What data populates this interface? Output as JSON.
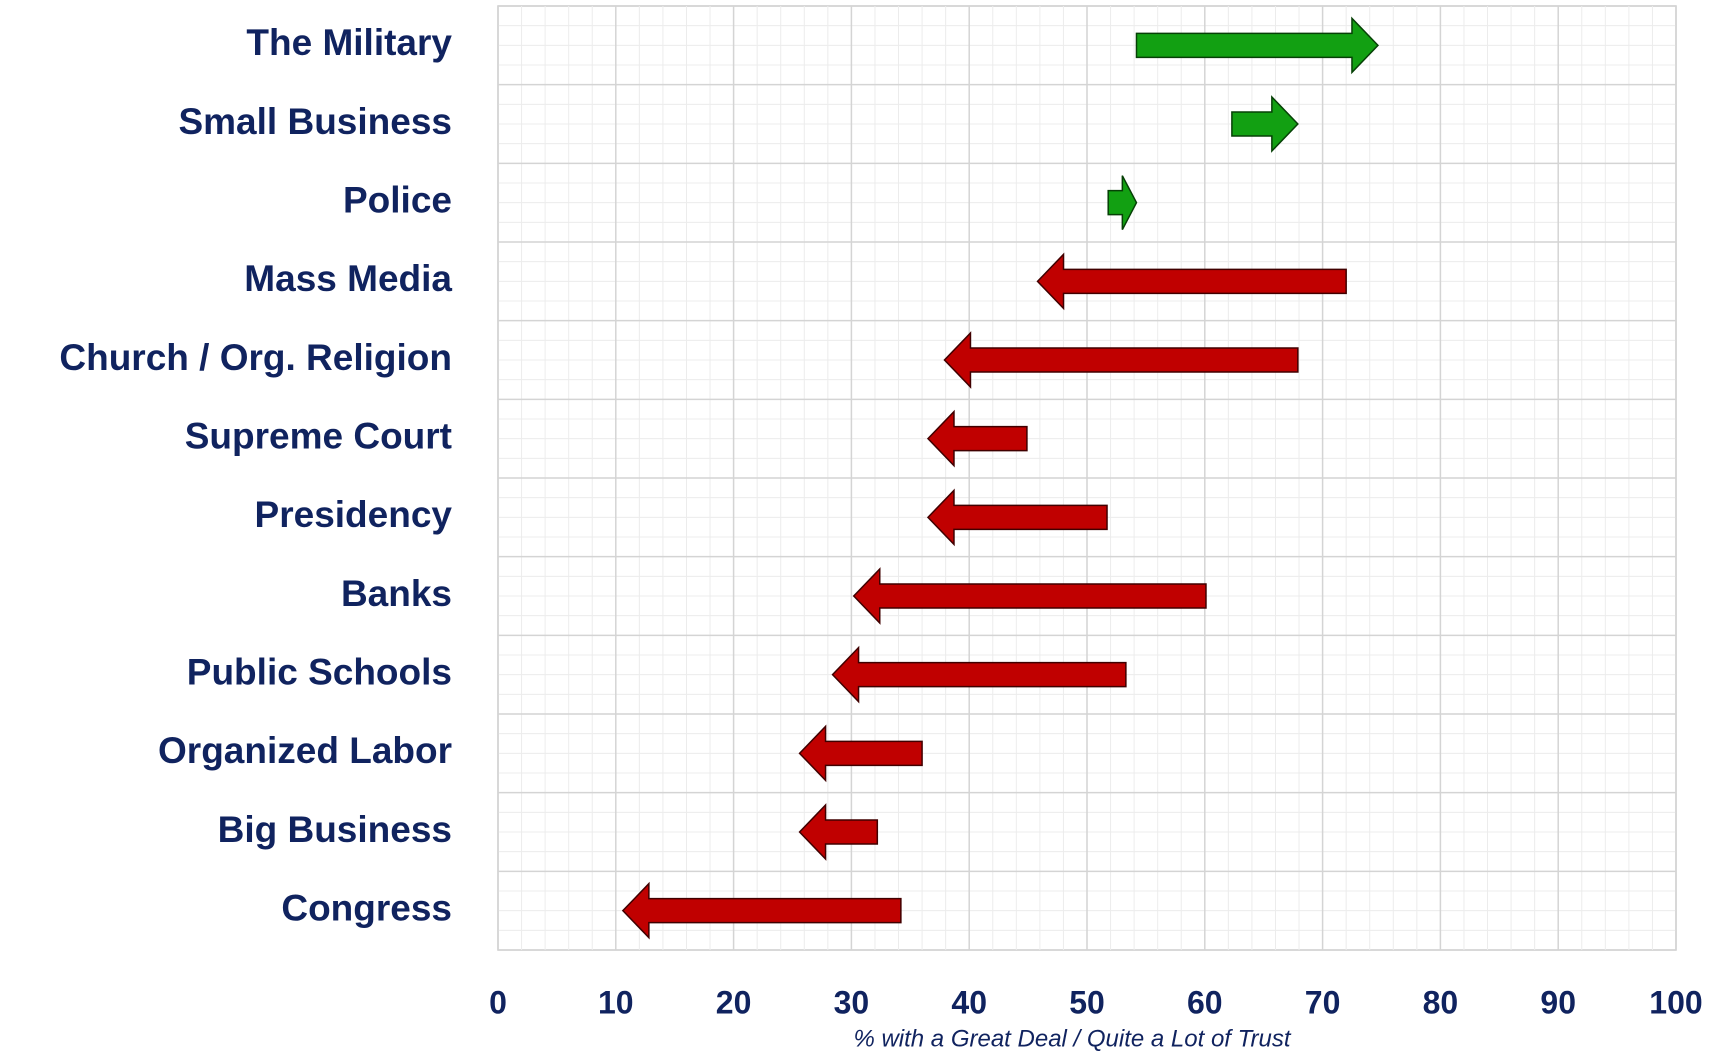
{
  "chart_data": {
    "type": "arrow",
    "categories": [
      "The Military",
      "Small Business",
      "Police",
      "Mass Media",
      "Church / Org. Religion",
      "Supreme Court",
      "Presidency",
      "Banks",
      "Public Schools",
      "Organized Labor",
      "Big Business",
      "Congress"
    ],
    "from": [
      54.2,
      62.3,
      51.8,
      72,
      67.9,
      44.9,
      51.7,
      60.1,
      53.3,
      36,
      32.2,
      34.2
    ],
    "to": [
      74.7,
      67.9,
      54.2,
      45.8,
      37.9,
      36.5,
      36.5,
      30.2,
      28.4,
      25.6,
      25.6,
      10.6
    ],
    "increase_color": "#12a012",
    "decrease_color": "#c00000",
    "xlabel": "% with a Great Deal / Quite a Lot of Trust",
    "xlim": [
      0,
      100
    ],
    "xticks": [
      0,
      10,
      20,
      30,
      40,
      50,
      60,
      70,
      80,
      90,
      100
    ],
    "grid": true
  }
}
